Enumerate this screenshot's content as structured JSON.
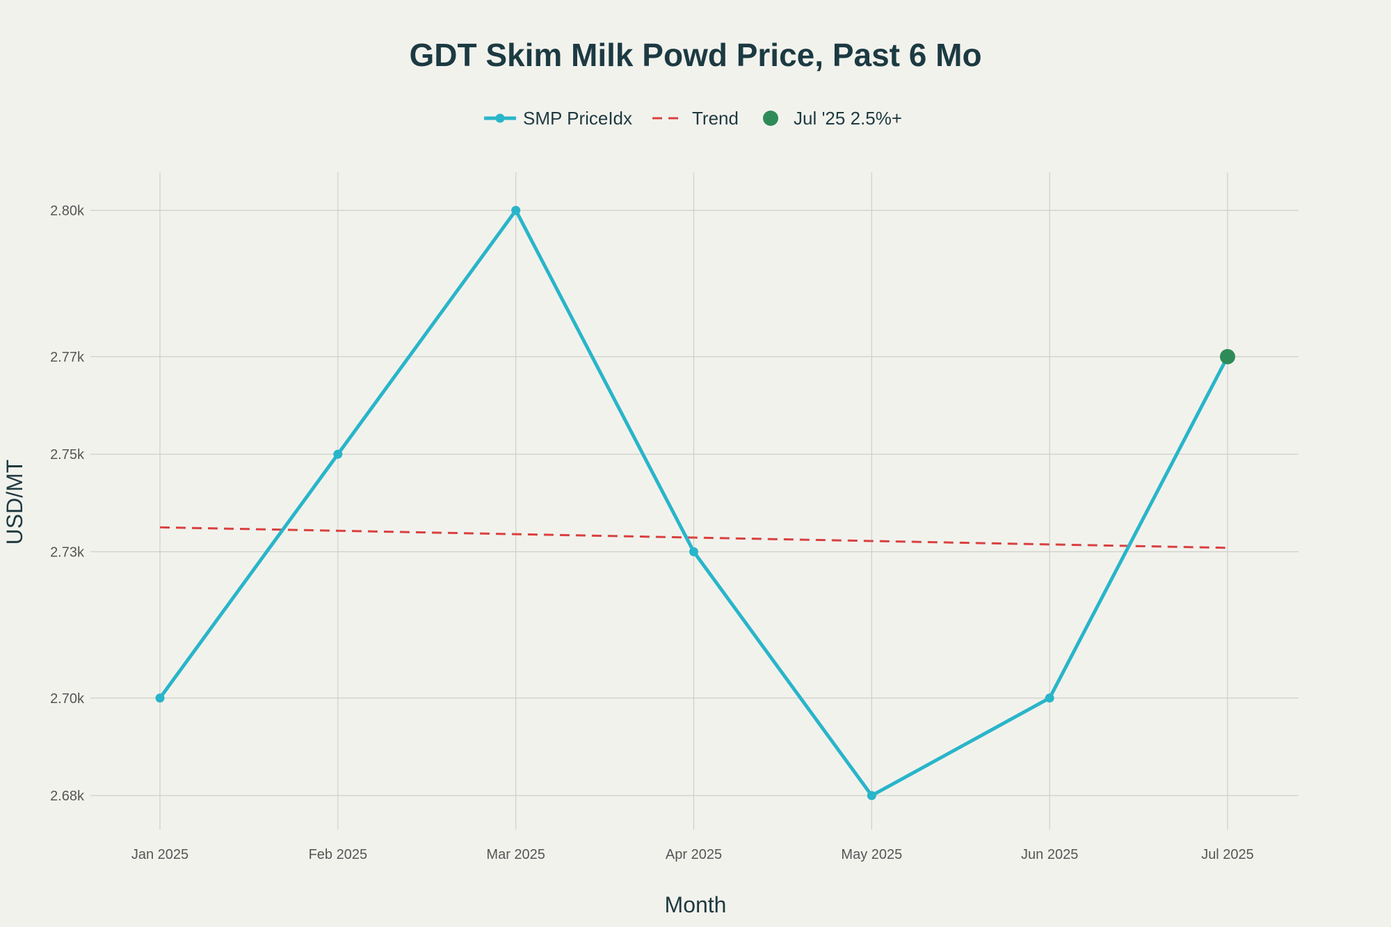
{
  "chart_data": {
    "type": "line",
    "title": "GDT Skim Milk Powd Price, Past 6 Mo",
    "xlabel": "Month",
    "ylabel": "USD/MT",
    "categories": [
      "Jan 2025",
      "Feb 2025",
      "Mar 2025",
      "Apr 2025",
      "May 2025",
      "Jun 2025",
      "Jul 2025"
    ],
    "series": [
      {
        "name": "SMP PriceIdx",
        "values": [
          2700,
          2750,
          2800,
          2730,
          2680,
          2700,
          2770
        ],
        "color": "#29b5c9"
      },
      {
        "name": "Trend",
        "values": [
          2735,
          2734.3,
          2733.6,
          2732.9,
          2732.2,
          2731.5,
          2730.8
        ],
        "color": "#d9413f",
        "style": "dashed"
      }
    ],
    "highlight": {
      "name": "Jul '25 2.5%+",
      "category": "Jul 2025",
      "value": 2770,
      "color": "#2e8b57"
    },
    "y_ticks": [
      {
        "value": 2680,
        "label": "2.68k"
      },
      {
        "value": 2700,
        "label": "2.70k"
      },
      {
        "value": 2730,
        "label": "2.73k"
      },
      {
        "value": 2750,
        "label": "2.75k"
      },
      {
        "value": 2770,
        "label": "2.77k"
      },
      {
        "value": 2800,
        "label": "2.80k"
      }
    ],
    "ylim": [
      2672,
      2808
    ],
    "grid": true,
    "legend_position": "top-center"
  }
}
